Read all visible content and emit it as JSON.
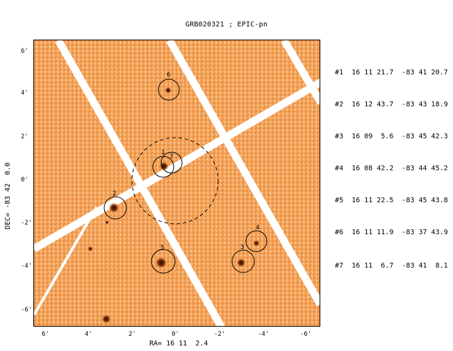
{
  "title": "GRB020321 ; EPIC-pn",
  "axes": {
    "ra_label": "RA= 16 11  2.4",
    "dec_label": "DEC= -83 42  0.0",
    "ra_ticks": [
      "6'",
      "4'",
      "2'",
      "0'",
      "-2'",
      "-4'",
      "-6'"
    ],
    "dec_ticks": [
      "6'",
      "4'",
      "2'",
      "0'",
      "-2'",
      "-4'",
      "-6'"
    ]
  },
  "sources": [
    {
      "id": "#1",
      "ra": "16 11 21.7",
      "dec": "-83 41 20.7"
    },
    {
      "id": "#2",
      "ra": "16 12 43.7",
      "dec": "-83 43 18.9"
    },
    {
      "id": "#3",
      "ra": "16 09  5.6",
      "dec": "-83 45 42.3"
    },
    {
      "id": "#4",
      "ra": "16 08 42.2",
      "dec": "-83 44 45.2"
    },
    {
      "id": "#5",
      "ra": "16 11 22.5",
      "dec": "-83 45 43.8"
    },
    {
      "id": "#6",
      "ra": "16 11 11.9",
      "dec": "-83 37 43.9"
    },
    {
      "id": "#7",
      "ra": "16 11  6.7",
      "dec": "-83 41  8.1"
    }
  ],
  "markers": [
    "1",
    "2",
    "3",
    "4",
    "5",
    "6",
    "7"
  ],
  "colors": {
    "background": "#f3a35a",
    "gap": "#ffffff",
    "source": "#3a1500"
  }
}
